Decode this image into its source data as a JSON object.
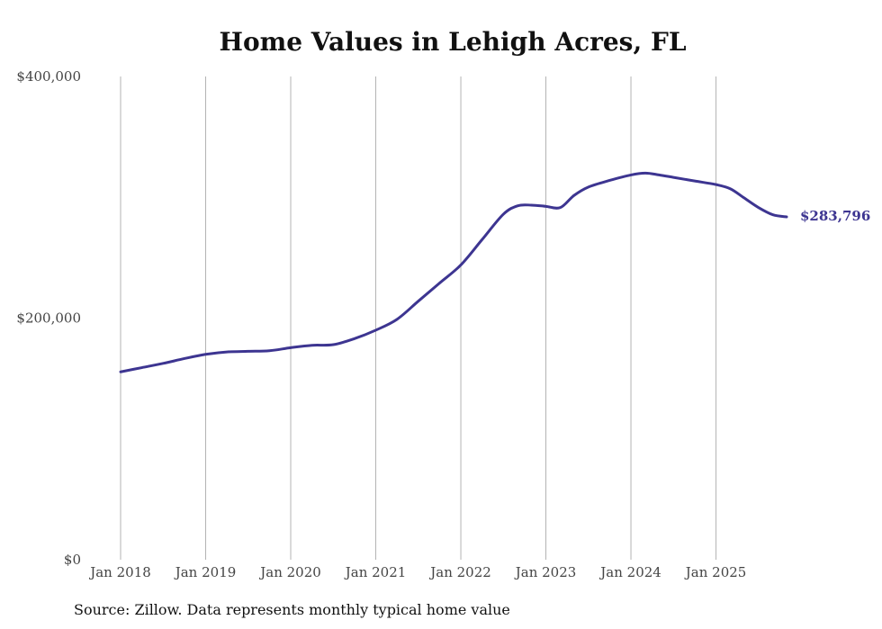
{
  "colors": {
    "line": "#3d3591",
    "grid": "#b3b3b3",
    "text": "#111111"
  },
  "chart_data": {
    "type": "line",
    "title": "Home Values in Lehigh Acres, FL",
    "source": "Source: Zillow. Data represents monthly typical home value",
    "xlabel": "",
    "ylabel": "",
    "grid": "vertical",
    "legend": "none",
    "ylim": [
      0,
      400000
    ],
    "xlim": [
      2018.0,
      2025.92
    ],
    "y_ticks": [
      {
        "value": 0,
        "label": "$0"
      },
      {
        "value": 200000,
        "label": "$200,000"
      },
      {
        "value": 400000,
        "label": "$400,000"
      }
    ],
    "x_ticks": [
      {
        "value": 2018,
        "label": "Jan 2018"
      },
      {
        "value": 2019,
        "label": "Jan 2019"
      },
      {
        "value": 2020,
        "label": "Jan 2020"
      },
      {
        "value": 2021,
        "label": "Jan 2021"
      },
      {
        "value": 2022,
        "label": "Jan 2022"
      },
      {
        "value": 2023,
        "label": "Jan 2023"
      },
      {
        "value": 2024,
        "label": "Jan 2024"
      },
      {
        "value": 2025,
        "label": "Jan 2025"
      }
    ],
    "end_label": "$283,796",
    "series": [
      {
        "name": "Typical home value",
        "points": [
          [
            2018.0,
            155500
          ],
          [
            2018.25,
            159000
          ],
          [
            2018.5,
            162500
          ],
          [
            2018.75,
            166500
          ],
          [
            2019.0,
            170000
          ],
          [
            2019.25,
            172000
          ],
          [
            2019.5,
            172500
          ],
          [
            2019.75,
            173000
          ],
          [
            2020.0,
            175500
          ],
          [
            2020.25,
            177500
          ],
          [
            2020.5,
            178000
          ],
          [
            2020.75,
            183000
          ],
          [
            2021.0,
            190000
          ],
          [
            2021.25,
            199000
          ],
          [
            2021.5,
            214000
          ],
          [
            2021.75,
            229000
          ],
          [
            2022.0,
            244000
          ],
          [
            2022.25,
            265000
          ],
          [
            2022.5,
            286000
          ],
          [
            2022.67,
            293000
          ],
          [
            2022.83,
            293500
          ],
          [
            2023.0,
            292500
          ],
          [
            2023.17,
            291500
          ],
          [
            2023.33,
            301500
          ],
          [
            2023.5,
            308500
          ],
          [
            2023.75,
            314000
          ],
          [
            2024.0,
            318500
          ],
          [
            2024.17,
            320000
          ],
          [
            2024.33,
            318500
          ],
          [
            2024.5,
            316500
          ],
          [
            2024.75,
            313500
          ],
          [
            2025.0,
            310500
          ],
          [
            2025.17,
            307000
          ],
          [
            2025.33,
            299500
          ],
          [
            2025.5,
            291500
          ],
          [
            2025.67,
            285500
          ],
          [
            2025.83,
            283796
          ]
        ]
      }
    ]
  }
}
